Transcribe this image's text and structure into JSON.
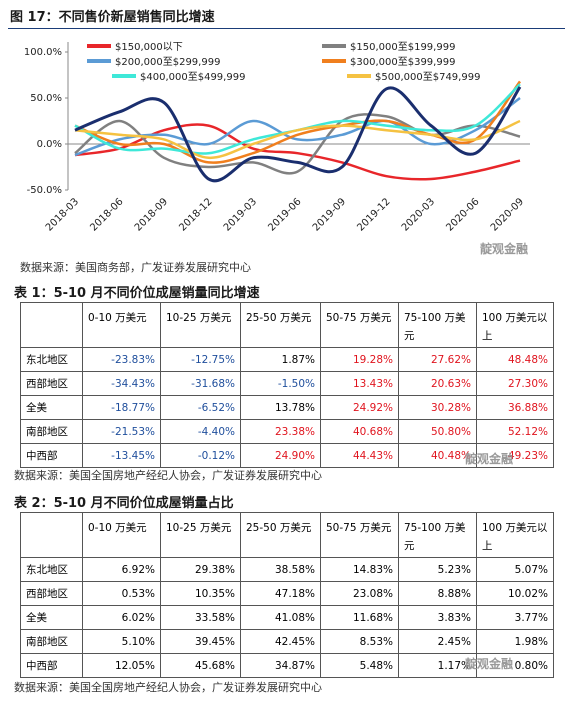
{
  "figure_title": "图 17：不同售价新屋销售同比增速",
  "chart_data": {
    "type": "line",
    "categories": [
      "2018-03",
      "2018-06",
      "2018-09",
      "2018-12",
      "2019-03",
      "2019-06",
      "2019-09",
      "2019-12",
      "2020-03",
      "2020-06",
      "2020-09"
    ],
    "ylim": [
      -50,
      100
    ],
    "yticks": [
      {
        "value": 100,
        "label": "100.0%"
      },
      {
        "value": 50,
        "label": "50.0%"
      },
      {
        "value": 0,
        "label": "0.0%"
      },
      {
        "value": -50,
        "label": "-50.0%"
      }
    ],
    "series": [
      {
        "name": "$150,000以下",
        "color": "#e8262a",
        "values": [
          -12,
          -5,
          15,
          20,
          -5,
          -10,
          -20,
          -35,
          -38,
          -30,
          -18
        ]
      },
      {
        "name": "$150,000至$199,999",
        "color": "#808080",
        "values": [
          -10,
          25,
          -15,
          -25,
          -20,
          -30,
          25,
          30,
          10,
          20,
          8
        ]
      },
      {
        "name": "$200,000至$299,999",
        "color": "#5b9bd5",
        "values": [
          -12,
          5,
          10,
          0,
          25,
          5,
          10,
          25,
          0,
          15,
          50
        ]
      },
      {
        "name": "$300,000至$399,999",
        "color": "#f07f1e",
        "values": [
          20,
          0,
          0,
          -20,
          -10,
          10,
          20,
          25,
          10,
          5,
          68
        ]
      },
      {
        "name": "$400,000至$499,999",
        "color": "#3ee8d8",
        "values": [
          20,
          -5,
          -5,
          -10,
          5,
          15,
          25,
          20,
          15,
          20,
          65
        ]
      },
      {
        "name": "$500,000至$749,999",
        "color": "#f5c242",
        "values": [
          15,
          10,
          5,
          -15,
          0,
          15,
          20,
          15,
          10,
          5,
          25
        ]
      },
      {
        "color": "#1a2e6e",
        "values": [
          15,
          35,
          45,
          -38,
          -15,
          -20,
          -25,
          60,
          20,
          -10,
          62
        ]
      }
    ]
  },
  "figure_source": "数据来源：美国商务部，广发证券发展研究中心",
  "watermark": "靛观金融",
  "tables": [
    {
      "title": "表 1：5-10 月不同价位成屋销量同比增速",
      "header": [
        "0-10 万美元",
        "10-25 万美元",
        "25-50 万美元",
        "50-75 万美元",
        "75-100 万美元",
        "100 万美元以上"
      ],
      "rows": [
        {
          "label": "东北地区",
          "cells": [
            "-23.83%",
            "-12.75%",
            "1.87%",
            "19.28%",
            "27.62%",
            "48.48%"
          ],
          "colors": [
            "#1f4e9c",
            "#1f4e9c",
            "#000",
            "#e0141e",
            "#e0141e",
            "#e0141e"
          ]
        },
        {
          "label": "西部地区",
          "cells": [
            "-34.43%",
            "-31.68%",
            "-1.50%",
            "13.43%",
            "20.63%",
            "27.30%"
          ],
          "colors": [
            "#1f4e9c",
            "#1f4e9c",
            "#1f4e9c",
            "#e0141e",
            "#e0141e",
            "#e0141e"
          ]
        },
        {
          "label": "全美",
          "cells": [
            "-18.77%",
            "-6.52%",
            "13.78%",
            "24.92%",
            "30.28%",
            "36.88%"
          ],
          "colors": [
            "#1f4e9c",
            "#1f4e9c",
            "#000",
            "#e0141e",
            "#e0141e",
            "#e0141e"
          ]
        },
        {
          "label": "南部地区",
          "cells": [
            "-21.53%",
            "-4.40%",
            "23.38%",
            "40.68%",
            "50.80%",
            "52.12%"
          ],
          "colors": [
            "#1f4e9c",
            "#1f4e9c",
            "#e0141e",
            "#e0141e",
            "#e0141e",
            "#e0141e"
          ]
        },
        {
          "label": "中西部",
          "cells": [
            "-13.45%",
            "-0.12%",
            "24.90%",
            "44.43%",
            "40.48%",
            "49.23%"
          ],
          "colors": [
            "#1f4e9c",
            "#1f4e9c",
            "#e0141e",
            "#e0141e",
            "#e0141e",
            "#e0141e"
          ]
        }
      ],
      "source": "数据来源：美国全国房地产经纪人协会，广发证券发展研究中心"
    },
    {
      "title": "表 2：5-10 月不同价位成屋销量占比",
      "header": [
        "0-10 万美元",
        "10-25 万美元",
        "25-50 万美元",
        "50-75 万美元",
        "75-100 万美元",
        "100 万美元以上"
      ],
      "rows": [
        {
          "label": "东北地区",
          "cells": [
            "6.92%",
            "29.38%",
            "38.58%",
            "14.83%",
            "5.23%",
            "5.07%"
          ]
        },
        {
          "label": "西部地区",
          "cells": [
            "0.53%",
            "10.35%",
            "47.18%",
            "23.08%",
            "8.88%",
            "10.02%"
          ]
        },
        {
          "label": "全美",
          "cells": [
            "6.02%",
            "33.58%",
            "41.08%",
            "11.68%",
            "3.83%",
            "3.77%"
          ]
        },
        {
          "label": "南部地区",
          "cells": [
            "5.10%",
            "39.45%",
            "42.45%",
            "8.53%",
            "2.45%",
            "1.98%"
          ]
        },
        {
          "label": "中西部",
          "cells": [
            "12.05%",
            "45.68%",
            "34.87%",
            "5.48%",
            "1.17%",
            "0.80%"
          ]
        }
      ],
      "source": "数据来源：美国全国房地产经纪人协会，广发证券发展研究中心"
    }
  ]
}
